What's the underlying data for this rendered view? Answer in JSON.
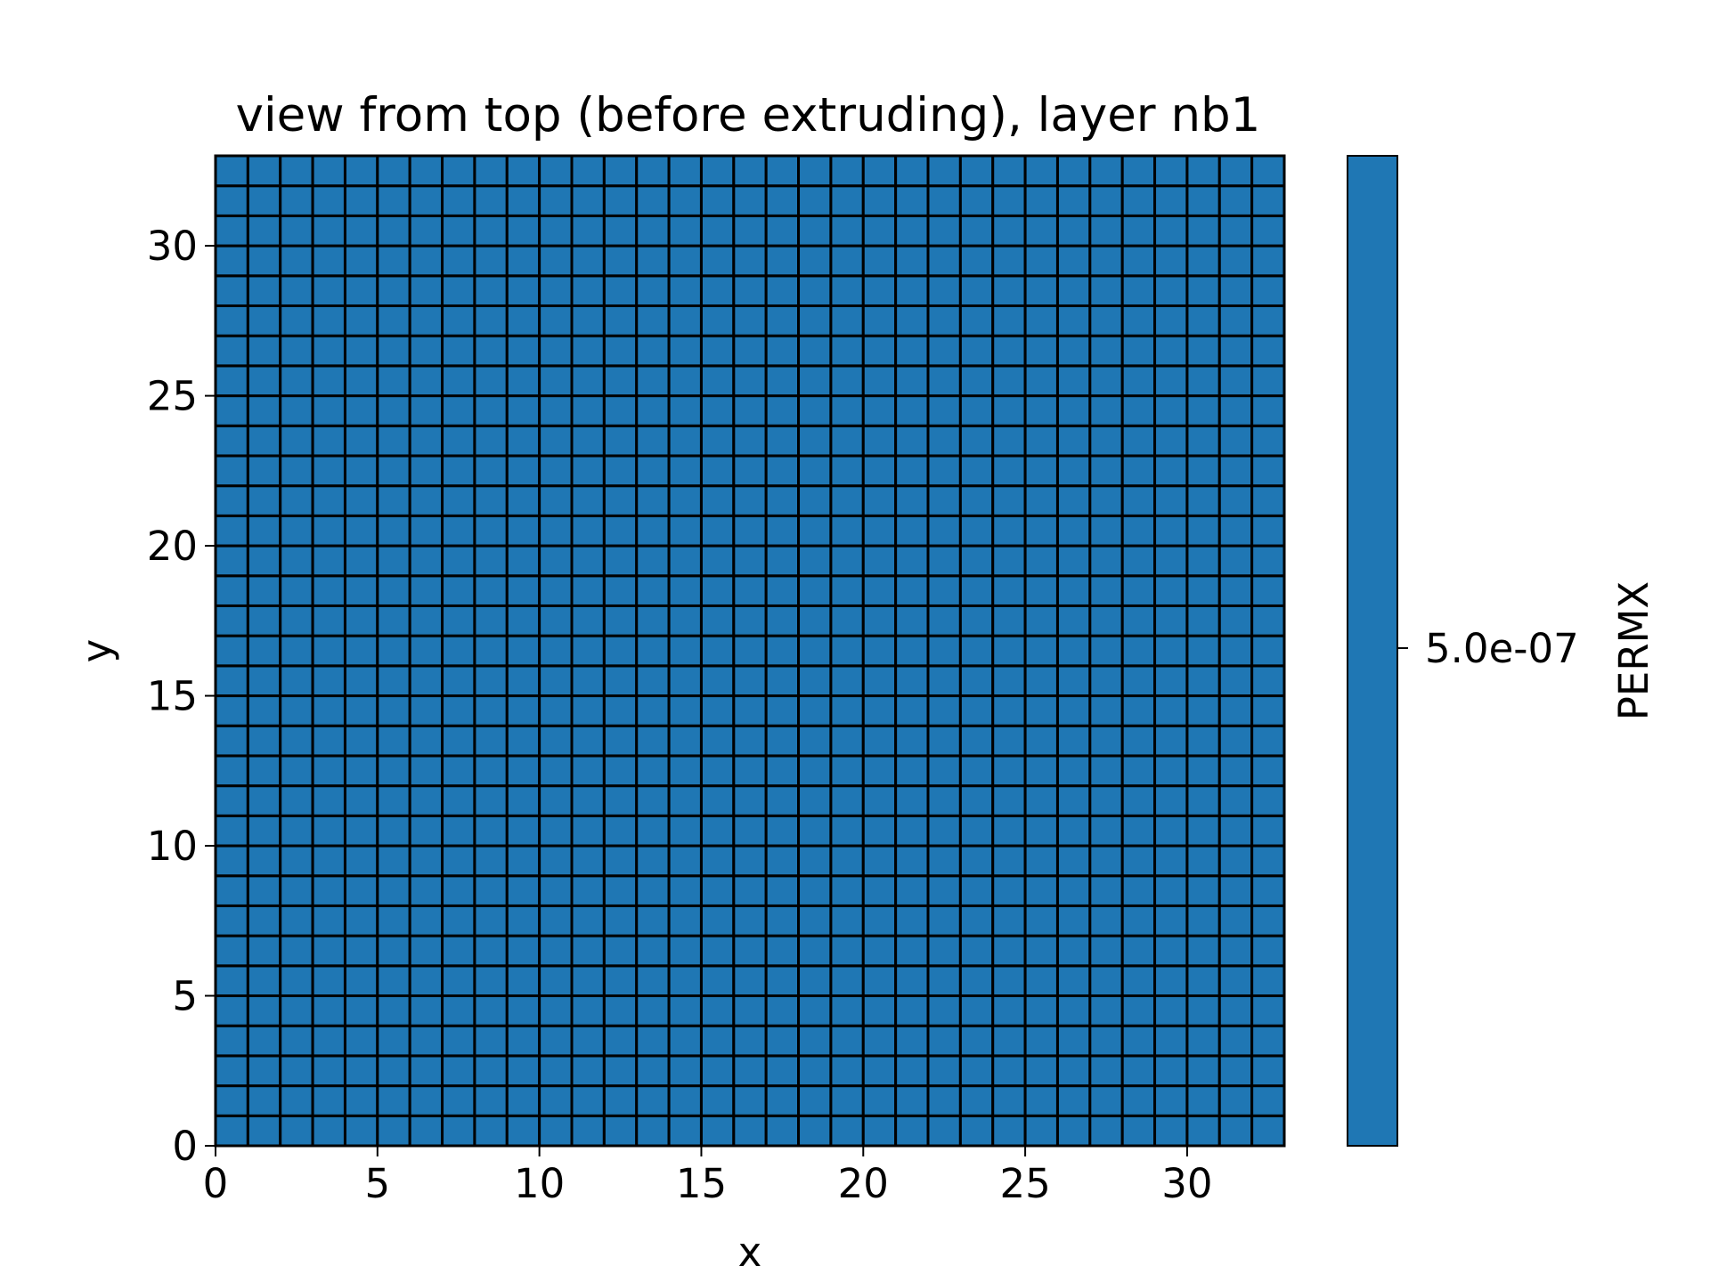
{
  "chart_data": {
    "type": "heatmap",
    "title": "view from top (before extruding), layer nb1",
    "xlabel": "x",
    "ylabel": "y",
    "xlim": [
      0,
      33
    ],
    "ylim": [
      0,
      33
    ],
    "grid_cols": 33,
    "grid_rows": 33,
    "cell_value": 5e-07,
    "cell_color": "#1f77b4",
    "edge_color": "#000000",
    "x_ticks": [
      0,
      5,
      10,
      15,
      20,
      25,
      30
    ],
    "y_ticks": [
      0,
      5,
      10,
      15,
      20,
      25,
      30
    ],
    "colorbar": {
      "label": "PERMX",
      "ticks": [
        {
          "value": 5e-07,
          "label": "5.0e-07"
        }
      ],
      "color": "#1f77b4"
    }
  }
}
